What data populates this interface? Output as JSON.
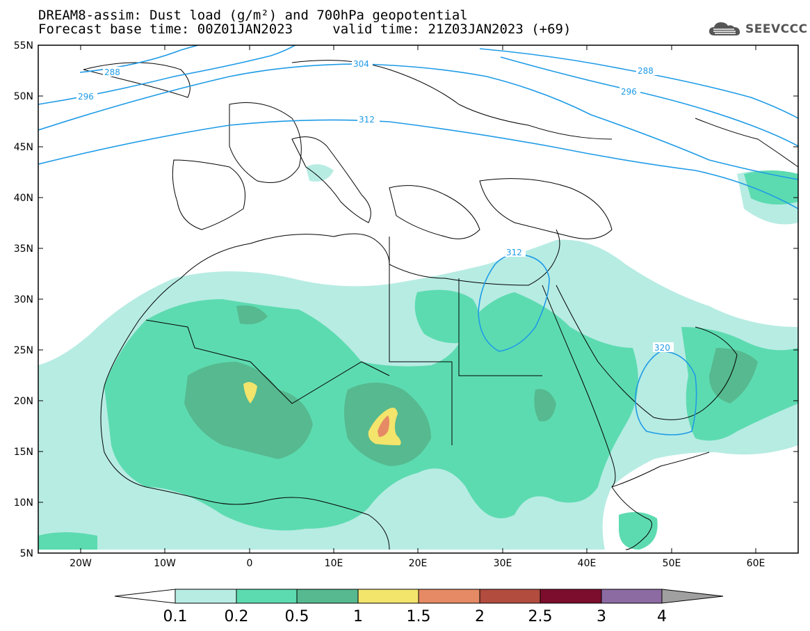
{
  "header": {
    "title_line": "DREAM8-assim: Dust load (g/m²) and 700hPa geopotential",
    "base_time": "Forecast base time: 00Z01JAN2023",
    "valid_time": "valid time: 21Z03JAN2023 (+69)"
  },
  "logo": {
    "text": "SEEVCCC",
    "icon": "cloud-icon"
  },
  "map": {
    "lat_labels": [
      "55N",
      "50N",
      "45N",
      "40N",
      "35N",
      "30N",
      "25N",
      "20N",
      "15N",
      "10N",
      "5N"
    ],
    "lon_labels": [
      "20W",
      "10W",
      "0",
      "10E",
      "20E",
      "30E",
      "40E",
      "50E",
      "60E"
    ],
    "extent": {
      "lon": [
        -25,
        65
      ],
      "lat": [
        5,
        55
      ]
    },
    "contours": [
      "288",
      "296",
      "304",
      "312",
      "312",
      "320",
      "288",
      "296"
    ],
    "contour_color": "#1e9be6"
  },
  "colorbar": {
    "ticks": [
      "0.1",
      "0.2",
      "0.5",
      "1",
      "1.5",
      "2",
      "2.5",
      "3",
      "4"
    ],
    "colors": [
      "#ffffff",
      "#b7ece3",
      "#5ddbb0",
      "#56b98f",
      "#f3e46c",
      "#e58a64",
      "#b24c3e",
      "#7c0d2c",
      "#8c6aa2",
      "#a0a0a0"
    ]
  }
}
